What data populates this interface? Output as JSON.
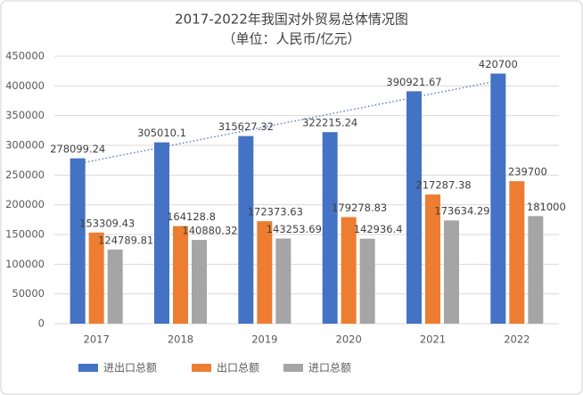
{
  "chart_data": {
    "type": "bar",
    "title": "2017-2022年我国对外贸易总体情况图",
    "subtitle": "（单位：人民币/亿元）",
    "categories": [
      "2017",
      "2018",
      "2019",
      "2020",
      "2021",
      "2022"
    ],
    "series": [
      {
        "name": "进出口总额",
        "color": "#4472c4",
        "values": [
          278099.24,
          305010.1,
          315627.32,
          322215.24,
          390921.67,
          420700
        ]
      },
      {
        "name": "出口总额",
        "color": "#ed7d31",
        "values": [
          153309.43,
          164128.8,
          172373.63,
          179278.83,
          217287.38,
          239700
        ]
      },
      {
        "name": "进口总额",
        "color": "#a5a5a5",
        "values": [
          124789.81,
          140880.32,
          143253.69,
          142936.4,
          173634.29,
          181000
        ]
      }
    ],
    "ylim": [
      0,
      450000
    ],
    "yticks": [
      0,
      50000,
      100000,
      150000,
      200000,
      250000,
      300000,
      350000,
      400000,
      450000
    ],
    "grid": true,
    "trendline_series": 0,
    "legend": "bottom"
  }
}
